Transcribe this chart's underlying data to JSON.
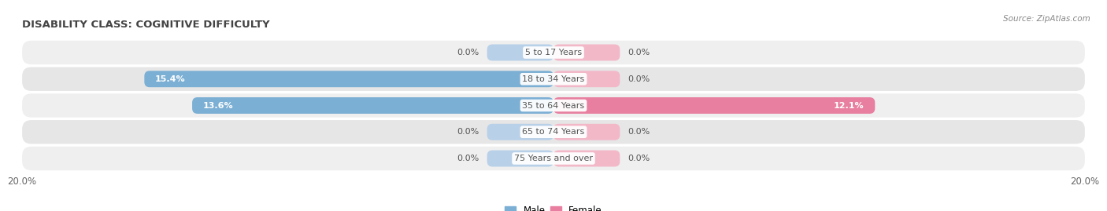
{
  "title": "DISABILITY CLASS: COGNITIVE DIFFICULTY",
  "source": "Source: ZipAtlas.com",
  "categories": [
    "5 to 17 Years",
    "18 to 34 Years",
    "35 to 64 Years",
    "65 to 74 Years",
    "75 Years and over"
  ],
  "male_values": [
    0.0,
    15.4,
    13.6,
    0.0,
    0.0
  ],
  "female_values": [
    0.0,
    0.0,
    12.1,
    0.0,
    0.0
  ],
  "max_val": 20.0,
  "male_color": "#7BAFD4",
  "male_color_light": "#B8D0E8",
  "female_color": "#E87FA0",
  "female_color_light": "#F2B8C8",
  "row_bg_odd": "#EFEFEF",
  "row_bg_even": "#E6E6E6",
  "label_color": "#555555",
  "title_color": "#444444",
  "axis_label_color": "#666666",
  "legend_male_color": "#7BAFD4",
  "legend_female_color": "#E87FA0",
  "stub_size": 2.5,
  "bar_height": 0.62
}
